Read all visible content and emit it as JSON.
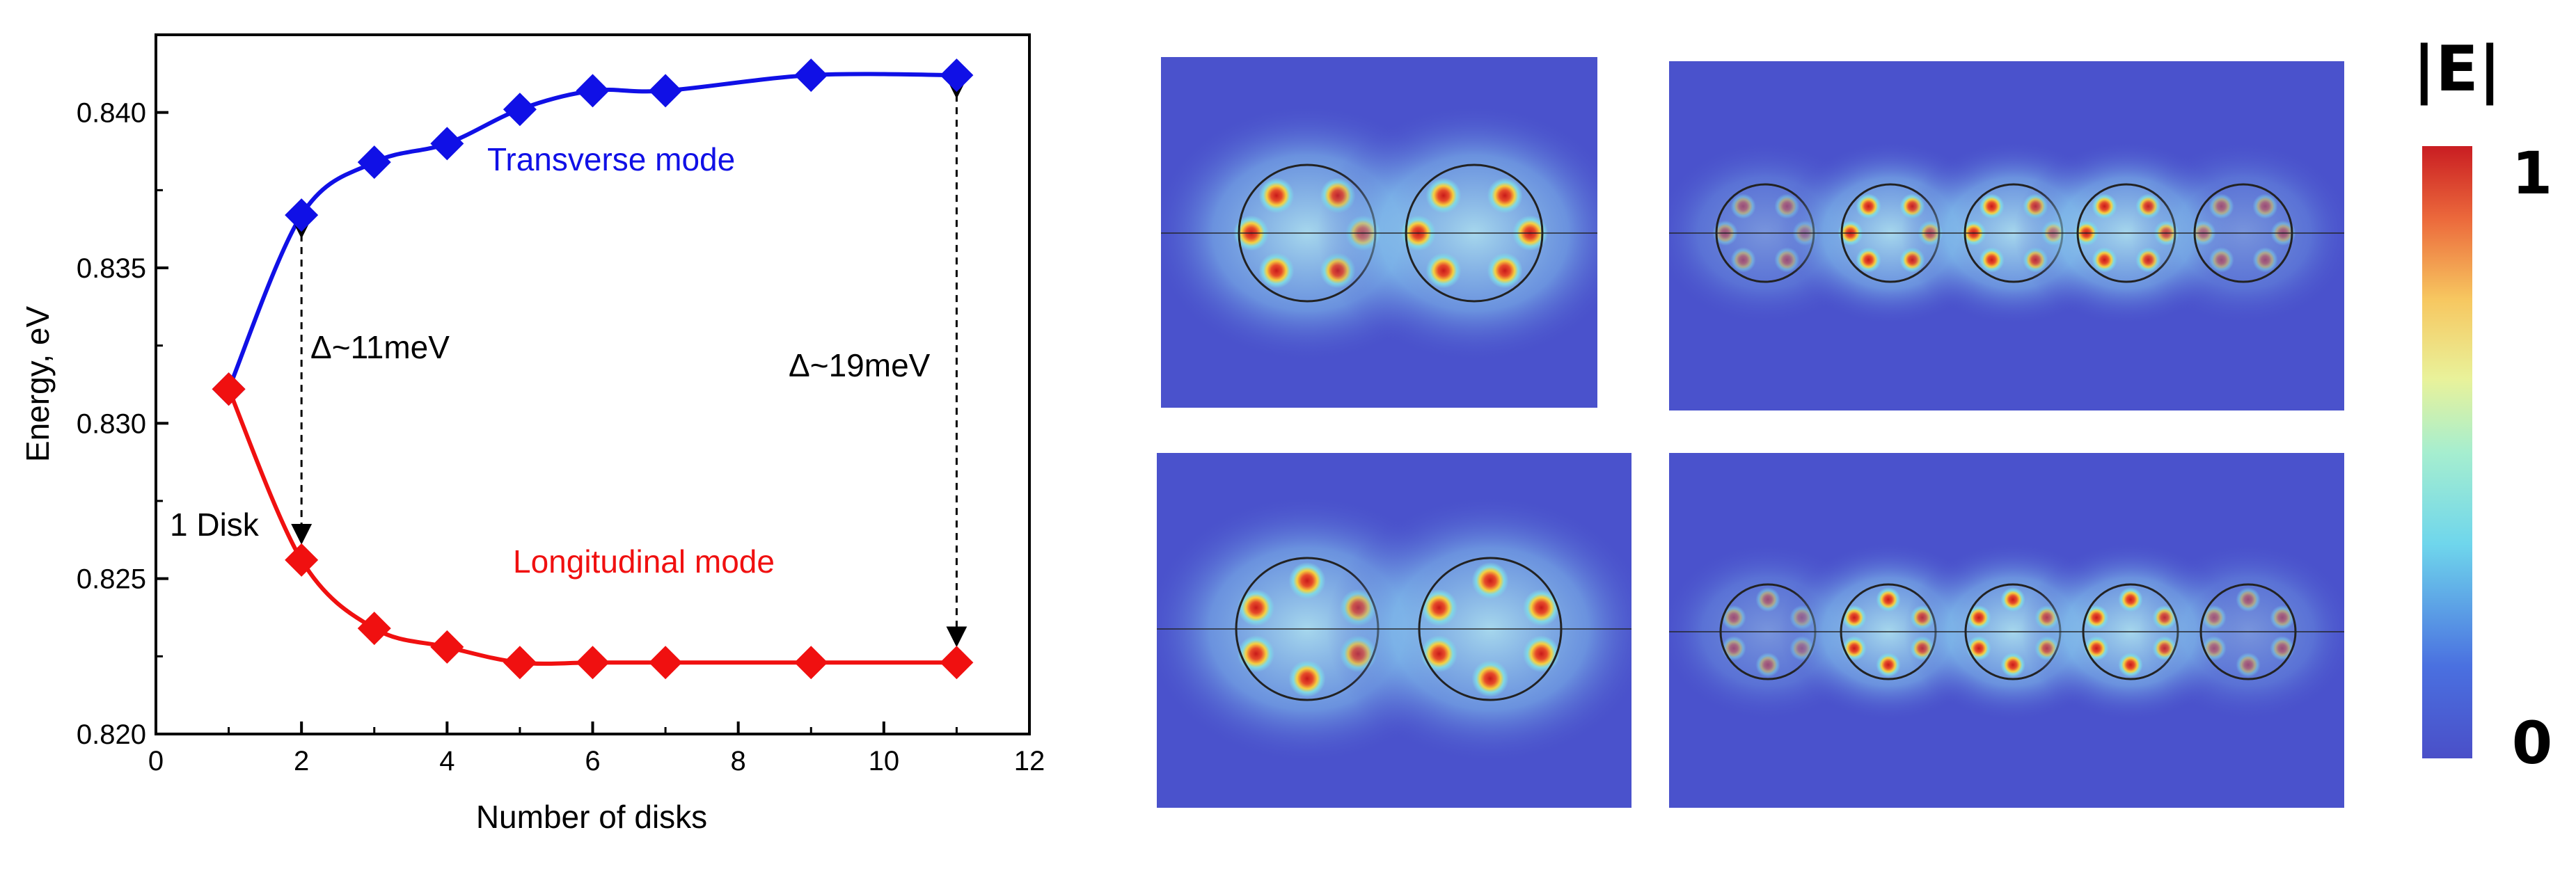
{
  "colors": {
    "transverse": "#1010e6",
    "longitudinal": "#f01010",
    "field_bg": "#4a52cc",
    "axis": "#000000"
  },
  "chart_data": {
    "type": "line",
    "xlabel": "Number of disks",
    "ylabel": "Energy, eV",
    "xlim": [
      0,
      12
    ],
    "ylim": [
      0.82,
      0.8425
    ],
    "x_ticks": [
      "0",
      "2",
      "4",
      "6",
      "8",
      "10",
      "12"
    ],
    "y_ticks": [
      "0.820",
      "0.825",
      "0.830",
      "0.835",
      "0.840"
    ],
    "series": [
      {
        "name": "Transverse mode",
        "color": "#1010e6",
        "marker": "diamond",
        "x": [
          1,
          2,
          3,
          4,
          5,
          6,
          7,
          9,
          11
        ],
        "y": [
          0.8311,
          0.8367,
          0.8384,
          0.839,
          0.8401,
          0.8407,
          0.8407,
          0.8412,
          0.8412
        ]
      },
      {
        "name": "Longitudinal mode",
        "color": "#f01010",
        "marker": "diamond",
        "x": [
          1,
          2,
          3,
          4,
          5,
          6,
          7,
          9,
          11
        ],
        "y": [
          0.8311,
          0.8256,
          0.8234,
          0.8228,
          0.8223,
          0.8223,
          0.8223,
          0.8223,
          0.8223
        ]
      }
    ],
    "annotations": {
      "one_disk": "1 Disk",
      "delta_2": "Δ~11meV",
      "delta_11": "Δ~19meV"
    },
    "grid": false
  },
  "field_maps": {
    "colorbar_title": "|E|",
    "colorbar_max": "1",
    "colorbar_min": "0",
    "panels": [
      {
        "disks": 2,
        "mode": "transverse"
      },
      {
        "disks": 5,
        "mode": "transverse"
      },
      {
        "disks": 2,
        "mode": "longitudinal"
      },
      {
        "disks": 5,
        "mode": "longitudinal"
      }
    ]
  }
}
